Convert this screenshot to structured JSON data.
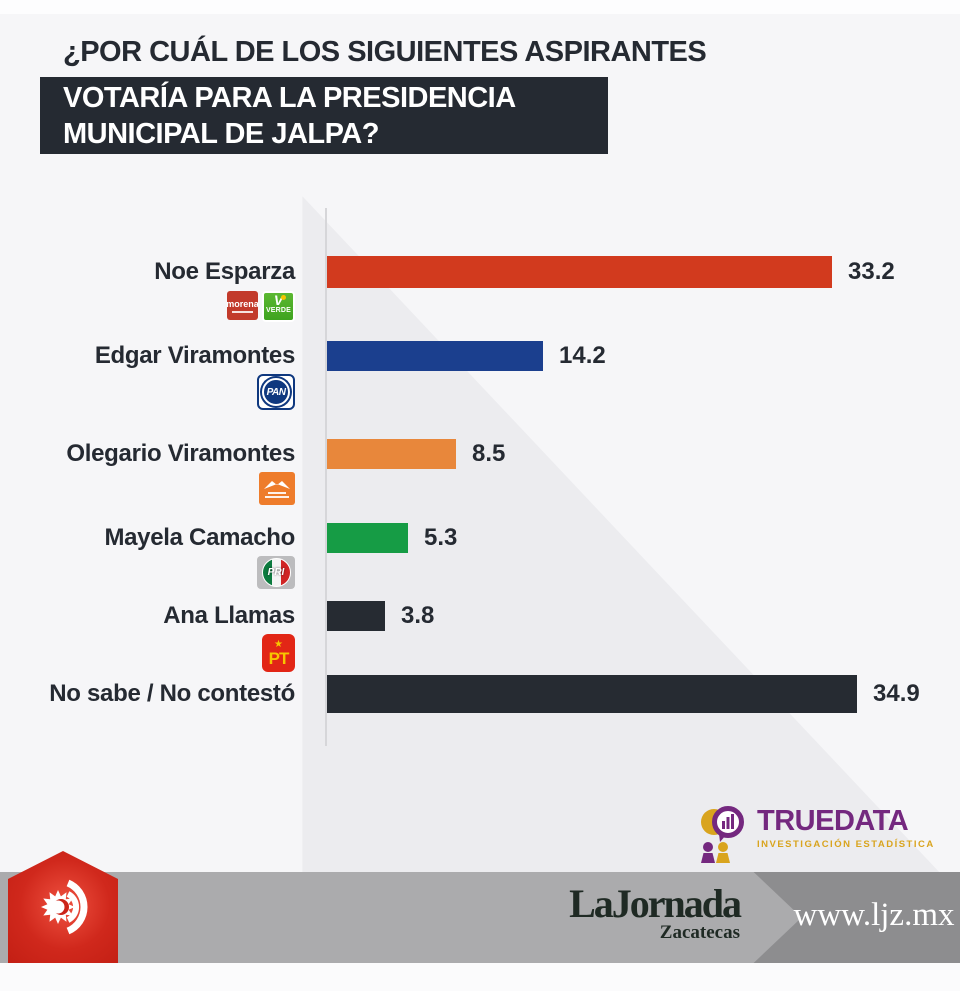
{
  "title": {
    "line1": "¿POR CUÁL DE LOS SIGUIENTES ASPIRANTES",
    "line2": "VOTARÍA PARA LA PRESIDENCIA",
    "line3": "MUNICIPAL DE JALPA?"
  },
  "chart_data": {
    "type": "bar",
    "orientation": "horizontal",
    "title": "¿Por cuál de los siguientes aspirantes votaría para la presidencia municipal de Jalpa?",
    "categories": [
      "Noe Esparza",
      "Edgar Viramontes",
      "Olegario Viramontes",
      "Mayela Camacho",
      "Ana Llamas",
      "No sabe / No contestó"
    ],
    "values": [
      33.2,
      14.2,
      8.5,
      5.3,
      3.8,
      34.9
    ],
    "value_labels": [
      "33.2",
      "14.2",
      "8.5",
      "5.3",
      "3.8",
      "34.9"
    ],
    "bar_colors": [
      "#d23a1e",
      "#1b3f8e",
      "#e8873b",
      "#169c45",
      "#262b32",
      "#262b32"
    ],
    "party_logos": [
      [
        "morena",
        "verde"
      ],
      [
        "pan"
      ],
      [
        "mc"
      ],
      [
        "pri"
      ],
      [
        "pt"
      ],
      []
    ],
    "xlim": [
      0,
      36.5
    ],
    "grid": false,
    "legend": false,
    "value_label_position": "end-of-bar"
  },
  "logos": {
    "morena": {
      "text": "morena",
      "bg": "#c23a2b"
    },
    "verde": {
      "mark": "V",
      "text": "VERDE",
      "bg": "#4fb02c"
    },
    "pan": {
      "text": "PAN",
      "color": "#0f387f"
    },
    "mc": {
      "bg": "#ee7c2b"
    },
    "pri": {
      "text": "PRI",
      "stripes": [
        "#0c7a3e",
        "#f4f4f4",
        "#d02525"
      ]
    },
    "pt": {
      "star": "★",
      "text": "PT",
      "bg": "#e22616",
      "fg": "#f7c600"
    }
  },
  "truedata": {
    "brand": "TRUEDATA",
    "subtitle": "INVESTIGACIÓN  ESTADÍSTICA",
    "purple": "#74287f",
    "gold": "#d9a41e"
  },
  "footer": {
    "newspaper": "LaJornada",
    "edition": "Zacatecas",
    "url": "www.ljz.mx"
  }
}
